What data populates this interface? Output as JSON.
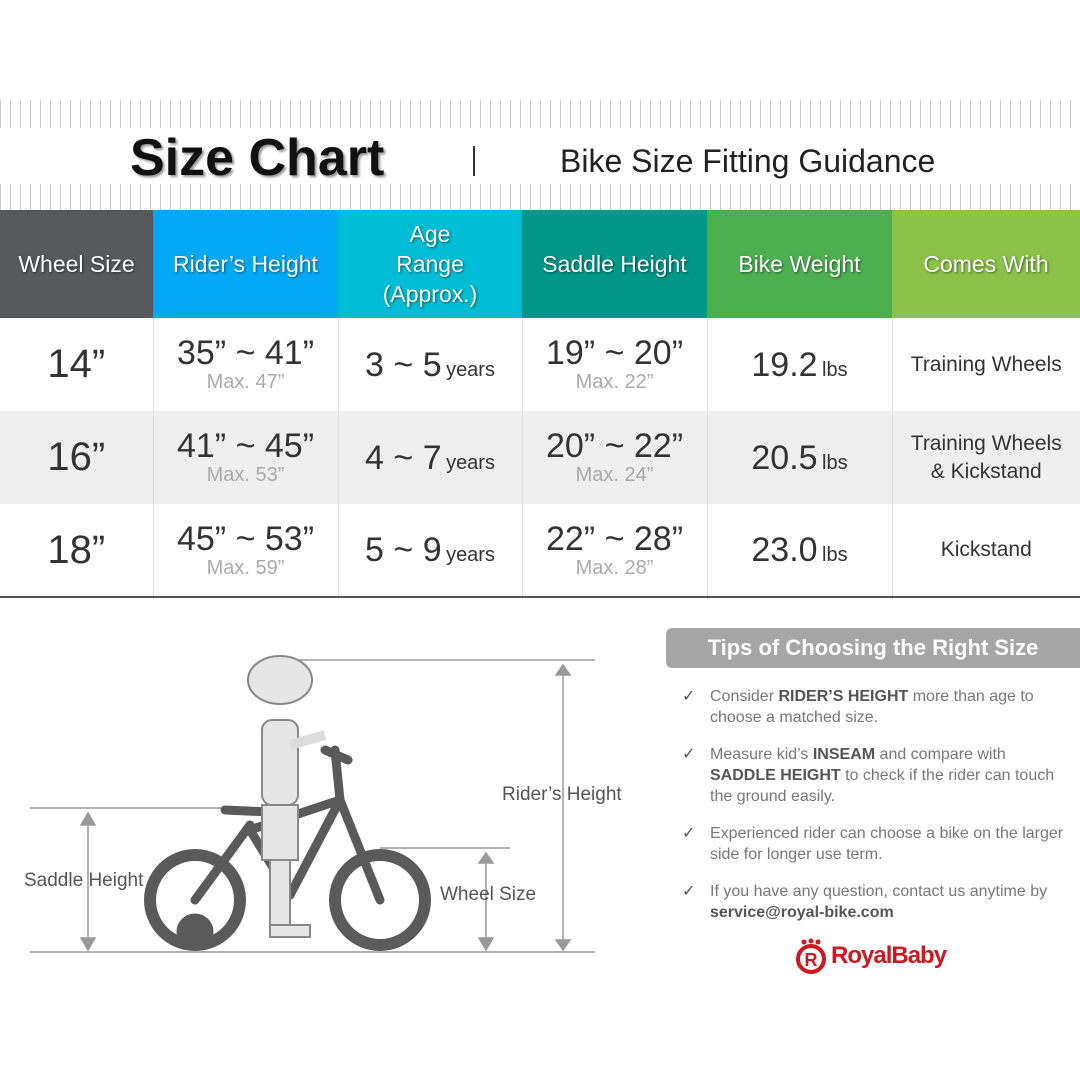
{
  "header": {
    "title": "Size Chart",
    "subtitle": "Bike Size Fitting Guidance"
  },
  "table": {
    "columns": [
      {
        "label": "Wheel Size",
        "color": "#58595b"
      },
      {
        "label": "Rider’s Height",
        "color": "#03a9f4"
      },
      {
        "label": "Age Range (Approx.)",
        "color": "#00bcd4"
      },
      {
        "label": "Saddle Height",
        "color": "#009688"
      },
      {
        "label": "Bike Weight",
        "color": "#4caf50"
      },
      {
        "label": "Comes With",
        "color": "#8bc34a"
      }
    ],
    "rows": [
      {
        "wheel": "14”",
        "height": "35” ~ 41”",
        "height_max": "Max. 47”",
        "age": "3 ~ 5",
        "age_unit": "years",
        "saddle": "19” ~ 20”",
        "saddle_max": "Max. 22”",
        "weight": "19.2",
        "weight_unit": "lbs",
        "comes": "Training Wheels"
      },
      {
        "wheel": "16”",
        "height": "41” ~ 45”",
        "height_max": "Max. 53”",
        "age": "4 ~ 7",
        "age_unit": "years",
        "saddle": "20” ~ 22”",
        "saddle_max": "Max. 24”",
        "weight": "20.5",
        "weight_unit": "lbs",
        "comes": "Training Wheels & Kickstand"
      },
      {
        "wheel": "18”",
        "height": "45” ~ 53”",
        "height_max": "Max. 59”",
        "age": "5 ~ 9",
        "age_unit": "years",
        "saddle": "22” ~ 28”",
        "saddle_max": "Max. 28”",
        "weight": "23.0",
        "weight_unit": "lbs",
        "comes": "Kickstand"
      }
    ]
  },
  "diagram": {
    "rider_height": "Rider’s Height",
    "saddle_height": "Saddle Height",
    "wheel_size": "Wheel Size"
  },
  "tips": {
    "title": "Tips of Choosing the Right Size",
    "items": [
      [
        {
          "t": "Consider "
        },
        {
          "t": "RIDER’S HEIGHT",
          "b": true
        },
        {
          "t": " more than age to choose a matched size."
        }
      ],
      [
        {
          "t": "Measure kid’s "
        },
        {
          "t": "INSEAM",
          "b": true
        },
        {
          "t": " and compare with "
        },
        {
          "t": "SADDLE HEIGHT",
          "b": true
        },
        {
          "t": " to check if the rider can touch the ground easily."
        }
      ],
      [
        {
          "t": "Experienced rider can choose a bike on the larger side for longer use term."
        }
      ],
      [
        {
          "t": "If you have any question, contact us anytime by "
        },
        {
          "t": "service@royal-bike.com",
          "b": true
        }
      ]
    ],
    "check_icon": "✓"
  },
  "brand": {
    "name": "RoyalBaby",
    "color": "#d0161e"
  }
}
